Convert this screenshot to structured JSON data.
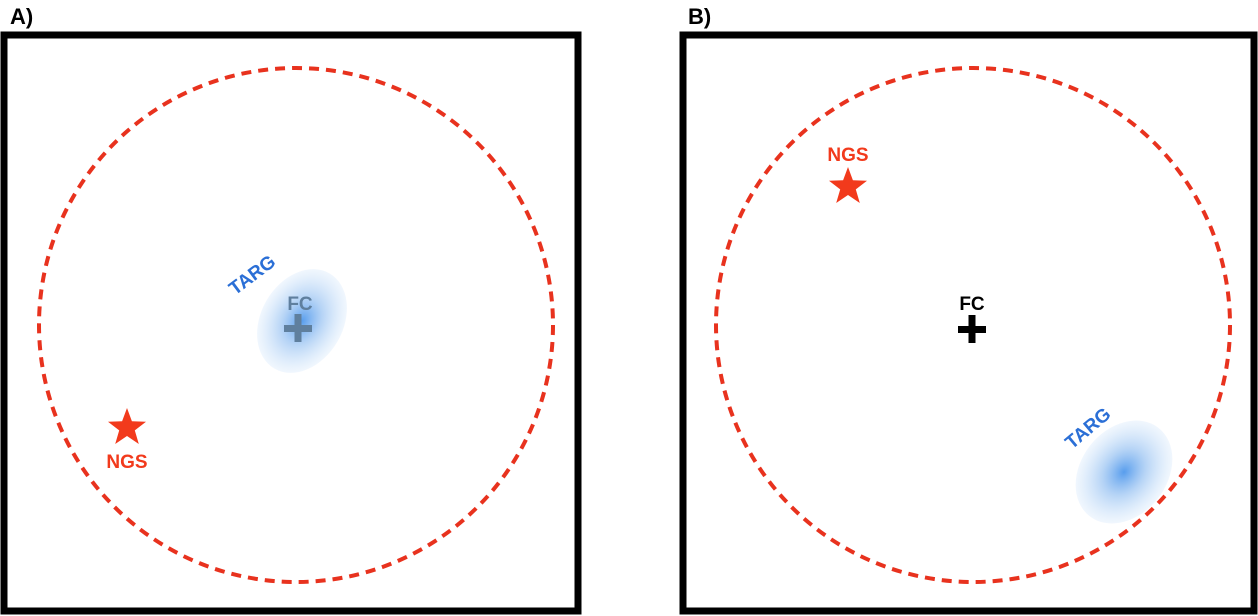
{
  "colors": {
    "frame": "#000000",
    "field_circle": "#e8321e",
    "ngs": "#f23a1c",
    "target": "#2b6fd6",
    "target_glow": "#5aa0ea",
    "fc_in_target": "#5f7f9e",
    "fc": "#000000"
  },
  "panels": [
    {
      "label": "A)",
      "targ_label": "TARG",
      "fc_label": "FC",
      "ngs_label": "NGS"
    },
    {
      "label": "B)",
      "targ_label": "TARG",
      "fc_label": "FC",
      "ngs_label": "NGS"
    }
  ]
}
